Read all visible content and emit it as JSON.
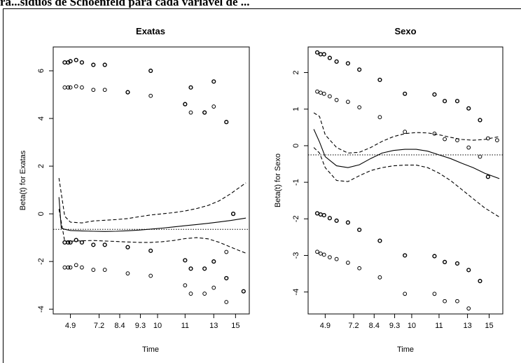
{
  "caption": "ra...síduos de Schoenfeld para cada variável de ...",
  "chart_data": [
    {
      "type": "scatter",
      "title": "Exatas",
      "xlabel": "Time",
      "ylabel": "Beta(t) for Exatas",
      "x_ticks": [
        "4.9",
        "7.2",
        "8.4",
        "9.3",
        "10",
        "11",
        "13",
        "15"
      ],
      "y_ticks": [
        6,
        4,
        2,
        0,
        -2,
        -4
      ],
      "ylim": [
        -4.2,
        7.0
      ],
      "zero_line": -0.65,
      "series": [
        {
          "role": "smooth",
          "x": [
            0.0,
            0.2,
            0.5,
            1,
            2,
            3,
            4,
            5,
            6,
            7,
            8,
            9,
            10,
            11,
            12,
            13,
            14,
            15,
            16.3
          ],
          "y": [
            0.7,
            -0.6,
            -0.65,
            -0.7,
            -0.72,
            -0.73,
            -0.74,
            -0.73,
            -0.71,
            -0.68,
            -0.64,
            -0.6,
            -0.55,
            -0.5,
            -0.45,
            -0.4,
            -0.34,
            -0.28,
            -0.18
          ]
        },
        {
          "role": "upper-band",
          "x": [
            0.0,
            0.5,
            1,
            2,
            3,
            4,
            5,
            6,
            7,
            8,
            9,
            10,
            11,
            12,
            13,
            14,
            15,
            16.3
          ],
          "y": [
            1.5,
            -0.1,
            -0.35,
            -0.38,
            -0.3,
            -0.27,
            -0.24,
            -0.2,
            -0.12,
            -0.05,
            0.0,
            0.05,
            0.12,
            0.22,
            0.35,
            0.55,
            0.85,
            1.3
          ]
        },
        {
          "role": "lower-band",
          "x": [
            0.0,
            0.5,
            1,
            2,
            3,
            4,
            5,
            6,
            7,
            8,
            9,
            10,
            11,
            12,
            13,
            14,
            15,
            16.3
          ],
          "y": [
            0.2,
            -1.15,
            -1.15,
            -1.13,
            -1.12,
            -1.14,
            -1.16,
            -1.18,
            -1.2,
            -1.2,
            -1.17,
            -1.12,
            -1.04,
            -1.0,
            -1.05,
            -1.2,
            -1.4,
            -1.65
          ]
        },
        {
          "role": "residuals",
          "x": [
            0.5,
            0.5,
            0.5,
            0.5,
            0.8,
            0.8,
            0.8,
            0.8,
            1,
            1,
            1,
            1,
            1.5,
            1.5,
            1.5,
            1.5,
            2,
            2,
            2,
            2,
            3,
            3,
            3,
            3,
            4,
            4,
            4,
            4,
            6,
            6,
            6,
            6,
            8,
            8,
            8,
            8,
            11,
            11,
            11,
            11,
            11.5,
            11.5,
            11.5,
            11.5,
            12.7,
            12.7,
            12.7,
            12.7,
            13.5,
            13.5,
            13.5,
            13.5,
            14.6,
            14.6,
            14.6,
            14.6,
            15.2,
            15.2,
            16.1
          ],
          "y": [
            6.35,
            5.3,
            -1.2,
            -2.25,
            6.35,
            5.3,
            -1.2,
            -2.25,
            6.4,
            5.3,
            -1.2,
            -2.25,
            6.45,
            5.35,
            -1.1,
            -2.15,
            6.35,
            5.3,
            -1.2,
            -2.25,
            6.25,
            5.2,
            -1.3,
            -2.35,
            6.25,
            5.2,
            -1.3,
            -2.35,
            5.1,
            5.1,
            -1.4,
            -2.5,
            6.0,
            4.95,
            -1.55,
            -2.6,
            4.6,
            4.6,
            -1.95,
            -3.0,
            5.3,
            4.25,
            -2.3,
            -3.35,
            4.25,
            4.25,
            -2.3,
            -3.35,
            5.55,
            4.5,
            -2.0,
            -3.1,
            3.85,
            -1.6,
            -2.7,
            -3.7,
            0.0,
            0.0,
            -3.25
          ]
        }
      ]
    },
    {
      "type": "scatter",
      "title": "Sexo",
      "xlabel": "Time",
      "ylabel": "Beta(t) for Sexo",
      "x_ticks": [
        "4.9",
        "7.2",
        "8.4",
        "9.3",
        "10",
        "11",
        "13",
        "15"
      ],
      "y_ticks": [
        2,
        1,
        0,
        -1,
        -2,
        -3,
        -4
      ],
      "ylim": [
        -4.6,
        2.7
      ],
      "zero_line": -0.25,
      "series": [
        {
          "role": "smooth",
          "x": [
            0.0,
            0.5,
            1,
            2,
            3,
            4,
            5,
            6,
            7,
            8,
            9,
            10,
            11,
            12,
            13,
            14,
            15,
            16.3
          ],
          "y": [
            0.45,
            0.1,
            -0.3,
            -0.55,
            -0.6,
            -0.52,
            -0.35,
            -0.2,
            -0.13,
            -0.1,
            -0.1,
            -0.15,
            -0.25,
            -0.35,
            -0.48,
            -0.6,
            -0.75,
            -0.9
          ]
        },
        {
          "role": "upper-band",
          "x": [
            0.0,
            0.5,
            1,
            2,
            3,
            4,
            5,
            6,
            7,
            8,
            9,
            10,
            11,
            12,
            13,
            14,
            15,
            16.3
          ],
          "y": [
            0.9,
            0.8,
            0.3,
            -0.05,
            -0.2,
            -0.18,
            -0.05,
            0.12,
            0.25,
            0.33,
            0.36,
            0.35,
            0.3,
            0.23,
            0.17,
            0.15,
            0.17,
            0.25
          ]
        },
        {
          "role": "lower-band",
          "x": [
            0.0,
            0.5,
            1,
            2,
            3,
            4,
            5,
            6,
            7,
            8,
            9,
            10,
            11,
            12,
            13,
            14,
            15,
            16.3
          ],
          "y": [
            -0.05,
            -0.2,
            -0.6,
            -0.95,
            -0.98,
            -0.82,
            -0.68,
            -0.6,
            -0.55,
            -0.53,
            -0.53,
            -0.6,
            -0.75,
            -0.95,
            -1.2,
            -1.45,
            -1.7,
            -1.95
          ]
        },
        {
          "role": "residuals",
          "x": [
            0.3,
            0.3,
            0.3,
            0.3,
            0.6,
            0.6,
            0.6,
            0.6,
            0.9,
            0.9,
            0.9,
            0.9,
            1.4,
            1.4,
            1.4,
            1.4,
            2,
            2,
            2,
            2,
            3,
            3,
            3,
            3,
            4,
            4,
            4,
            4,
            5.8,
            5.8,
            5.8,
            5.8,
            8,
            8,
            8,
            8,
            10.6,
            10.6,
            10.6,
            10.6,
            11.5,
            11.5,
            11.5,
            11.5,
            12.6,
            12.6,
            12.6,
            12.6,
            13.6,
            13.6,
            13.6,
            13.6,
            14.6,
            14.6,
            14.6,
            15.3,
            15.3,
            16.1
          ],
          "y": [
            2.55,
            1.48,
            -1.85,
            -2.9,
            2.5,
            1.45,
            -1.88,
            -2.95,
            2.5,
            1.42,
            -1.9,
            -2.98,
            2.4,
            1.35,
            -1.98,
            -3.05,
            2.3,
            1.25,
            -2.05,
            -3.1,
            2.25,
            1.2,
            -2.1,
            -3.2,
            2.08,
            1.05,
            -2.3,
            -3.35,
            1.8,
            0.78,
            -2.6,
            -3.6,
            1.42,
            0.38,
            -3.0,
            -4.05,
            1.4,
            0.33,
            -3.02,
            -4.05,
            1.22,
            0.18,
            -3.18,
            -4.25,
            1.22,
            0.15,
            -3.22,
            -4.25,
            1.02,
            -0.05,
            -3.4,
            -4.45,
            0.7,
            -0.3,
            -3.7,
            0.2,
            -0.85,
            0.15
          ]
        }
      ]
    }
  ]
}
